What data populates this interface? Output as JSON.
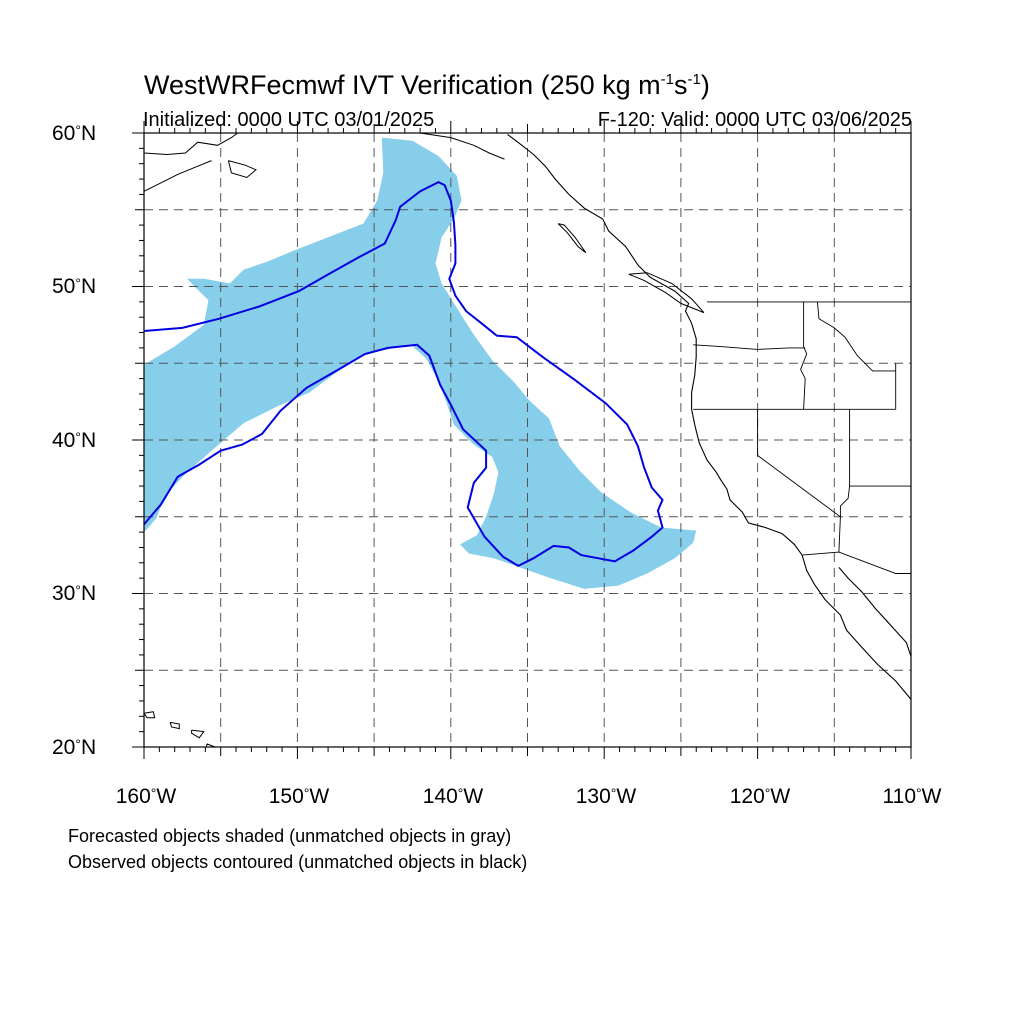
{
  "title": {
    "main": "WestWRFecmwf IVT Verification (250 kg m",
    "sup1": "-1",
    "mid": "s",
    "sup2": "-1",
    "end": ")"
  },
  "subtitle": {
    "left": "Initialized: 0000 UTC 03/01/2025",
    "right": "F-120: Valid: 0000 UTC 03/06/2025"
  },
  "axes": {
    "lat_labels": [
      "60",
      "50",
      "40",
      "30",
      "20"
    ],
    "lat_suffix": "N",
    "lon_labels": [
      "160",
      "150",
      "140",
      "130",
      "120",
      "110"
    ],
    "lon_suffix": "W",
    "degree": "°",
    "lon_range": [
      -160,
      -110
    ],
    "lat_range": [
      20,
      60
    ],
    "grid_lon_step": 5,
    "grid_lat_step": 5
  },
  "footer": {
    "line1": "Forecasted objects shaded (unmatched objects in gray)",
    "line2": "Observed objects contoured (unmatched objects in black)"
  },
  "colors": {
    "forecast_fill": "#87ceeb",
    "observed_contour": "#0000e0",
    "coastline": "#000000",
    "grid": "#555555"
  },
  "forecast_object": [
    [
      -144.5,
      59.7
    ],
    [
      -142.5,
      59.5
    ],
    [
      -140.8,
      58.5
    ],
    [
      -139.6,
      57.2
    ],
    [
      -139.3,
      55.6
    ],
    [
      -139.8,
      54.4
    ],
    [
      -140.6,
      53.2
    ],
    [
      -141,
      51.5
    ],
    [
      -140.6,
      50.2
    ],
    [
      -139.6,
      48.6
    ],
    [
      -138.6,
      47
    ],
    [
      -137.3,
      45.2
    ],
    [
      -135.9,
      43.8
    ],
    [
      -134.9,
      42.6
    ],
    [
      -133.6,
      41.4
    ],
    [
      -132.9,
      39.6
    ],
    [
      -131.6,
      38
    ],
    [
      -130.2,
      36.6
    ],
    [
      -128.3,
      35.3
    ],
    [
      -126.3,
      34.3
    ],
    [
      -124,
      34.1
    ],
    [
      -124.2,
      33.3
    ],
    [
      -125.4,
      32.3
    ],
    [
      -127.2,
      31.3
    ],
    [
      -129.1,
      30.5
    ],
    [
      -131.3,
      30.3
    ],
    [
      -133.5,
      31
    ],
    [
      -135.5,
      31.7
    ],
    [
      -137.2,
      32.3
    ],
    [
      -138.8,
      32.6
    ],
    [
      -139.4,
      33.2
    ],
    [
      -138.3,
      33.8
    ],
    [
      -137.7,
      35
    ],
    [
      -137.2,
      36.5
    ],
    [
      -136.9,
      37.9
    ],
    [
      -137.3,
      38.9
    ],
    [
      -138.5,
      39.7
    ],
    [
      -139.8,
      41
    ],
    [
      -140.3,
      42.5
    ],
    [
      -140.9,
      44
    ],
    [
      -141.6,
      45.3
    ],
    [
      -142.6,
      46.2
    ],
    [
      -145.7,
      45.6
    ],
    [
      -147.2,
      44.6
    ],
    [
      -149.2,
      43.1
    ],
    [
      -151.3,
      42.2
    ],
    [
      -153.5,
      41.1
    ],
    [
      -155.6,
      39.3
    ],
    [
      -157.3,
      37.8
    ],
    [
      -158.6,
      36.4
    ],
    [
      -159.2,
      34.9
    ],
    [
      -159.8,
      34.2
    ],
    [
      -160,
      34
    ],
    [
      -160,
      44.9
    ],
    [
      -158,
      46.1
    ],
    [
      -156.1,
      47.5
    ],
    [
      -155.8,
      49.1
    ],
    [
      -156.5,
      49.8
    ],
    [
      -157.2,
      50.5
    ],
    [
      -156.1,
      50.5
    ],
    [
      -154.4,
      50.2
    ],
    [
      -153.5,
      51.1
    ],
    [
      -152,
      51.6
    ],
    [
      -150.1,
      52.4
    ],
    [
      -147.5,
      53.4
    ],
    [
      -145.7,
      54.1
    ],
    [
      -144.8,
      55.6
    ],
    [
      -144.4,
      57.4
    ]
  ],
  "observed_object": [
    [
      -160,
      47.1
    ],
    [
      -157.5,
      47.3
    ],
    [
      -155.1,
      47.9
    ],
    [
      -152.5,
      48.7
    ],
    [
      -149.9,
      49.7
    ],
    [
      -147.8,
      50.9
    ],
    [
      -146,
      51.9
    ],
    [
      -144.3,
      52.8
    ],
    [
      -143.6,
      54.3
    ],
    [
      -143.3,
      55.2
    ],
    [
      -142,
      56.2
    ],
    [
      -140.8,
      56.8
    ],
    [
      -140.4,
      56.6
    ],
    [
      -140,
      55.6
    ],
    [
      -139.8,
      54.2
    ],
    [
      -139.7,
      52.7
    ],
    [
      -139.7,
      51.5
    ],
    [
      -140.1,
      50.5
    ],
    [
      -139.7,
      49.4
    ],
    [
      -139,
      48.4
    ],
    [
      -138,
      47.6
    ],
    [
      -137,
      46.8
    ],
    [
      -135.7,
      46.7
    ],
    [
      -134,
      45.4
    ],
    [
      -131.9,
      43.9
    ],
    [
      -129.9,
      42.4
    ],
    [
      -128.5,
      41
    ],
    [
      -127.8,
      39.6
    ],
    [
      -127.4,
      38.2
    ],
    [
      -126.9,
      36.9
    ],
    [
      -126.2,
      36.1
    ],
    [
      -126.5,
      35.4
    ],
    [
      -126.2,
      34.3
    ],
    [
      -126.9,
      33.7
    ],
    [
      -128.1,
      32.8
    ],
    [
      -129.3,
      32.1
    ],
    [
      -131.5,
      32.5
    ],
    [
      -132.3,
      33
    ],
    [
      -133.3,
      33.1
    ],
    [
      -134.6,
      32.3
    ],
    [
      -135.6,
      31.8
    ],
    [
      -136.6,
      32.4
    ],
    [
      -137.8,
      33.7
    ],
    [
      -138.9,
      35.6
    ],
    [
      -138.5,
      37.2
    ],
    [
      -137.7,
      38.2
    ],
    [
      -137.7,
      39.3
    ],
    [
      -139.2,
      40.7
    ],
    [
      -140,
      42.3
    ],
    [
      -140.7,
      43.6
    ],
    [
      -141.4,
      45.5
    ],
    [
      -142.2,
      46.2
    ],
    [
      -144.1,
      46
    ],
    [
      -145.6,
      45.6
    ],
    [
      -147.3,
      44.6
    ],
    [
      -149.4,
      43.4
    ],
    [
      -151.1,
      41.9
    ],
    [
      -152.3,
      40.4
    ],
    [
      -153.6,
      39.7
    ],
    [
      -155,
      39.3
    ],
    [
      -156.4,
      38.4
    ],
    [
      -157.8,
      37.6
    ],
    [
      -158.9,
      35.8
    ],
    [
      -160,
      34.5
    ]
  ]
}
